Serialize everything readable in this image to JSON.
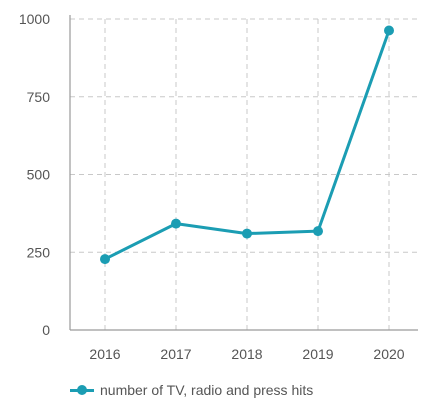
{
  "colors": {
    "series": "#1b9db3",
    "grid": "#c8c8c8",
    "axis": "#9a9a9a",
    "text": "#555555"
  },
  "chart_data": {
    "type": "line",
    "title": "",
    "xlabel": "",
    "ylabel": "",
    "categories": [
      "2016",
      "2017",
      "2018",
      "2019",
      "2020"
    ],
    "series": [
      {
        "name": "number of TV, radio and press hits",
        "values": [
          228,
          342,
          310,
          318,
          963
        ]
      }
    ],
    "ylim": [
      0,
      1000
    ],
    "yticks": [
      0,
      250,
      500,
      750,
      1000
    ],
    "grid": true,
    "legend_position": "bottom-left",
    "markers": true
  }
}
